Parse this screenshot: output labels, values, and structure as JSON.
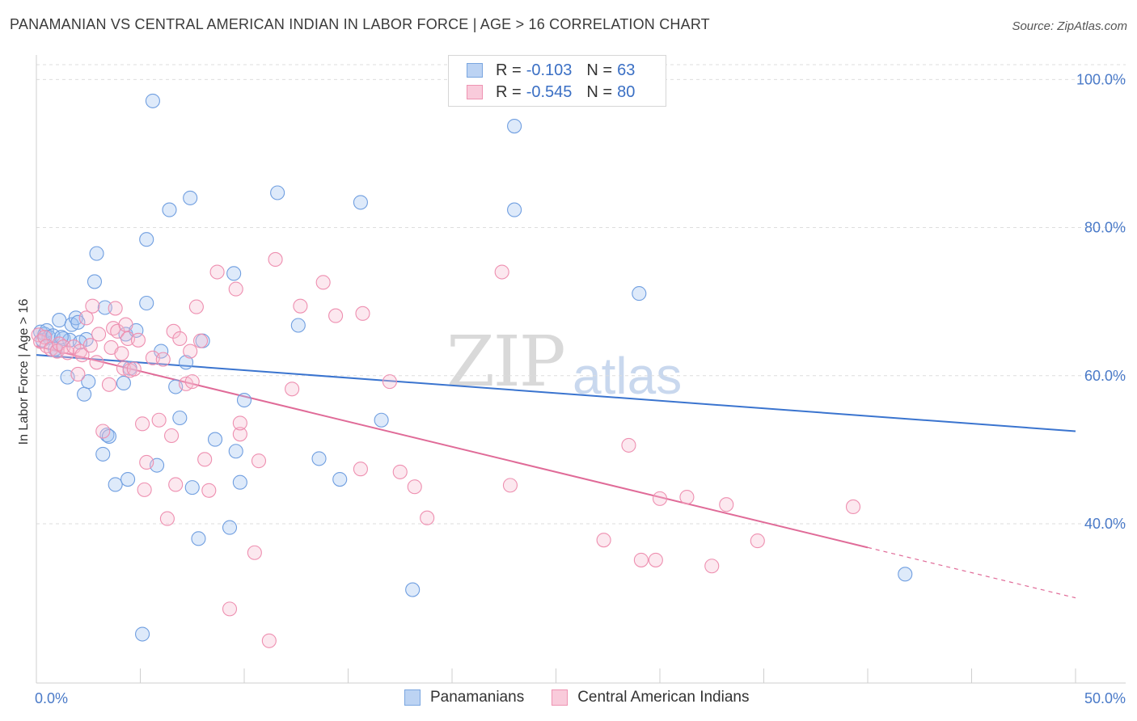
{
  "title": "PANAMANIAN VS CENTRAL AMERICAN INDIAN IN LABOR FORCE | AGE > 16 CORRELATION CHART",
  "source": "Source: ZipAtlas.com",
  "watermark": {
    "zip": "ZIP",
    "atlas": "atlas"
  },
  "legend": {
    "rows": [
      {
        "r_label": "R =",
        "r_value": "-0.103",
        "n_label": "N =",
        "n_value": "63",
        "color": "#a9c6f0",
        "border": "#7aa6e0"
      },
      {
        "r_label": "R =",
        "r_value": "-0.545",
        "n_label": "N =",
        "n_value": "80",
        "color": "#f7bcd0",
        "border": "#ee93b2"
      }
    ]
  },
  "bottom_legend": [
    "Panamanians",
    "Central American Indians"
  ],
  "chart_data": {
    "type": "scatter",
    "xlabel": "",
    "ylabel": "In Labor Force | Age > 16",
    "x_tick_labels": [
      "0.0%",
      "50.0%"
    ],
    "y_tick_labels": [
      "100.0%",
      "80.0%",
      "60.0%",
      "40.0%"
    ],
    "xlim": [
      0,
      50
    ],
    "ylim": [
      18.5,
      102
    ],
    "grid": true,
    "series": [
      {
        "name": "Panamanians",
        "color": "#6f9ee0",
        "fill": "rgba(160,195,240,0.35)",
        "trend": {
          "x0": 0,
          "y0": 62.8,
          "x1": 50,
          "y1": 52.5,
          "color": "#3a74cf"
        },
        "points": [
          [
            0.2,
            65.9
          ],
          [
            0.3,
            64.8
          ],
          [
            0.4,
            65.6
          ],
          [
            0.5,
            66.1
          ],
          [
            0.6,
            65.2
          ],
          [
            0.8,
            65.4
          ],
          [
            1.0,
            63.4
          ],
          [
            1.1,
            67.5
          ],
          [
            1.3,
            65.0
          ],
          [
            1.5,
            59.8
          ],
          [
            1.6,
            64.8
          ],
          [
            1.7,
            66.9
          ],
          [
            1.9,
            67.8
          ],
          [
            2.0,
            67.2
          ],
          [
            2.3,
            57.5
          ],
          [
            2.4,
            64.9
          ],
          [
            2.5,
            59.2
          ],
          [
            2.8,
            72.7
          ],
          [
            2.9,
            76.5
          ],
          [
            3.2,
            49.4
          ],
          [
            3.3,
            69.2
          ],
          [
            3.4,
            52.0
          ],
          [
            3.5,
            51.8
          ],
          [
            3.8,
            45.3
          ],
          [
            4.2,
            59.0
          ],
          [
            4.3,
            65.6
          ],
          [
            4.4,
            46.0
          ],
          [
            4.5,
            61.0
          ],
          [
            4.8,
            66.1
          ],
          [
            5.1,
            25.1
          ],
          [
            5.3,
            78.4
          ],
          [
            5.3,
            69.8
          ],
          [
            5.6,
            97.1
          ],
          [
            5.8,
            47.9
          ],
          [
            6.0,
            63.3
          ],
          [
            6.4,
            82.4
          ],
          [
            6.7,
            58.5
          ],
          [
            6.9,
            54.3
          ],
          [
            7.2,
            61.8
          ],
          [
            7.4,
            84.0
          ],
          [
            7.5,
            44.9
          ],
          [
            7.8,
            38.0
          ],
          [
            8.0,
            64.7
          ],
          [
            8.6,
            51.4
          ],
          [
            9.3,
            39.5
          ],
          [
            9.5,
            73.8
          ],
          [
            9.6,
            49.8
          ],
          [
            9.8,
            45.6
          ],
          [
            10.0,
            56.7
          ],
          [
            11.6,
            84.7
          ],
          [
            12.6,
            66.8
          ],
          [
            13.6,
            48.8
          ],
          [
            14.6,
            46.0
          ],
          [
            15.6,
            83.4
          ],
          [
            16.6,
            54.0
          ],
          [
            18.1,
            31.1
          ],
          [
            23.0,
            93.7
          ],
          [
            23.0,
            82.4
          ],
          [
            29.0,
            71.1
          ],
          [
            41.8,
            33.2
          ],
          [
            1.2,
            65.2
          ],
          [
            0.9,
            63.6
          ],
          [
            2.1,
            64.5
          ]
        ]
      },
      {
        "name": "Central American Indians",
        "color": "#ee8fb0",
        "fill": "rgba(247,188,208,0.35)",
        "trend": {
          "x0": 0,
          "y0": 64.0,
          "x1": 40,
          "y1": 36.8,
          "color": "#e06b98"
        },
        "trend_dash": {
          "x0": 40,
          "y0": 36.8,
          "x1": 50,
          "y1": 30.0
        },
        "points": [
          [
            0.1,
            65.5
          ],
          [
            0.2,
            64.6
          ],
          [
            0.4,
            65.2
          ],
          [
            0.5,
            64.0
          ],
          [
            0.7,
            63.6
          ],
          [
            1.0,
            63.3
          ],
          [
            1.1,
            64.3
          ],
          [
            1.3,
            63.9
          ],
          [
            1.5,
            63.1
          ],
          [
            1.8,
            63.9
          ],
          [
            2.0,
            60.2
          ],
          [
            2.1,
            63.3
          ],
          [
            2.2,
            62.8
          ],
          [
            2.4,
            67.8
          ],
          [
            2.6,
            64.1
          ],
          [
            2.7,
            69.4
          ],
          [
            2.9,
            61.8
          ],
          [
            3.0,
            65.6
          ],
          [
            3.2,
            52.5
          ],
          [
            3.5,
            58.8
          ],
          [
            3.6,
            63.8
          ],
          [
            3.7,
            66.4
          ],
          [
            3.8,
            69.1
          ],
          [
            3.9,
            66.0
          ],
          [
            4.1,
            63.0
          ],
          [
            4.2,
            61.0
          ],
          [
            4.3,
            66.9
          ],
          [
            4.4,
            65.0
          ],
          [
            4.5,
            60.7
          ],
          [
            4.7,
            60.9
          ],
          [
            4.9,
            64.8
          ],
          [
            5.1,
            53.5
          ],
          [
            5.2,
            44.6
          ],
          [
            5.3,
            48.3
          ],
          [
            5.6,
            62.4
          ],
          [
            5.9,
            54.0
          ],
          [
            6.1,
            62.2
          ],
          [
            6.3,
            40.7
          ],
          [
            6.5,
            51.9
          ],
          [
            6.6,
            66.0
          ],
          [
            6.7,
            45.3
          ],
          [
            6.9,
            65.0
          ],
          [
            7.2,
            58.9
          ],
          [
            7.4,
            63.3
          ],
          [
            7.5,
            59.2
          ],
          [
            7.7,
            69.3
          ],
          [
            7.9,
            64.7
          ],
          [
            8.1,
            48.7
          ],
          [
            8.3,
            44.5
          ],
          [
            8.7,
            74.0
          ],
          [
            9.3,
            28.5
          ],
          [
            9.6,
            71.7
          ],
          [
            9.8,
            52.1
          ],
          [
            9.8,
            53.6
          ],
          [
            10.5,
            36.1
          ],
          [
            10.7,
            48.5
          ],
          [
            11.2,
            24.2
          ],
          [
            11.5,
            75.7
          ],
          [
            12.3,
            58.2
          ],
          [
            12.7,
            69.4
          ],
          [
            13.8,
            72.6
          ],
          [
            14.4,
            68.1
          ],
          [
            15.6,
            47.4
          ],
          [
            15.7,
            68.4
          ],
          [
            17.0,
            59.2
          ],
          [
            17.5,
            47.0
          ],
          [
            18.2,
            45.0
          ],
          [
            18.8,
            40.8
          ],
          [
            22.4,
            74.0
          ],
          [
            22.8,
            45.2
          ],
          [
            27.3,
            37.8
          ],
          [
            28.5,
            50.6
          ],
          [
            29.1,
            35.1
          ],
          [
            29.8,
            35.1
          ],
          [
            30.0,
            43.4
          ],
          [
            31.3,
            43.6
          ],
          [
            32.5,
            34.3
          ],
          [
            33.2,
            42.6
          ],
          [
            34.7,
            37.7
          ],
          [
            39.3,
            42.3
          ]
        ]
      }
    ]
  }
}
